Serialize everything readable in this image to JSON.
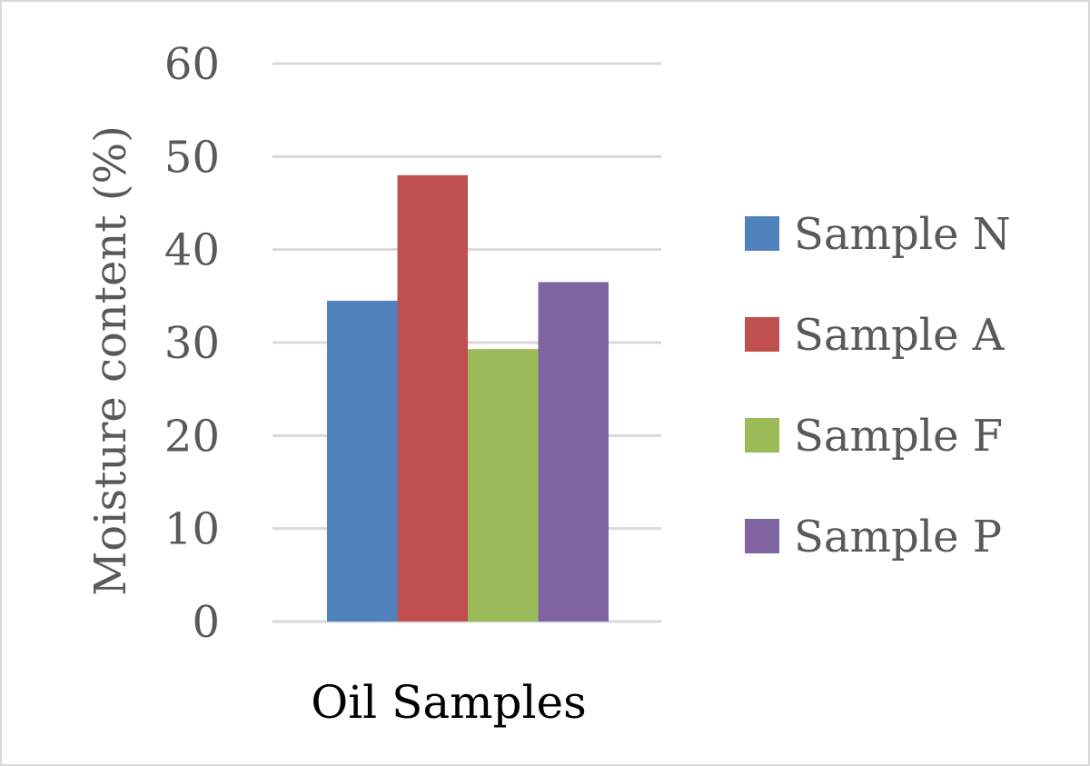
{
  "chart_data": {
    "type": "bar",
    "title": "",
    "xlabel": "Oil Samples",
    "ylabel": "Moisture content (%)",
    "ylim": [
      0,
      60
    ],
    "yticks": [
      0,
      10,
      20,
      30,
      40,
      50,
      60
    ],
    "grid": true,
    "legend_position": "right",
    "categories": [
      "Oil Samples"
    ],
    "series": [
      {
        "name": "Sample N",
        "values": [
          34.5
        ],
        "color": "#4f81bd"
      },
      {
        "name": "Sample A",
        "values": [
          48.0
        ],
        "color": "#c0504d"
      },
      {
        "name": "Sample F",
        "values": [
          29.3
        ],
        "color": "#9bbb59"
      },
      {
        "name": "Sample P",
        "values": [
          36.5
        ],
        "color": "#8064a2"
      }
    ]
  }
}
